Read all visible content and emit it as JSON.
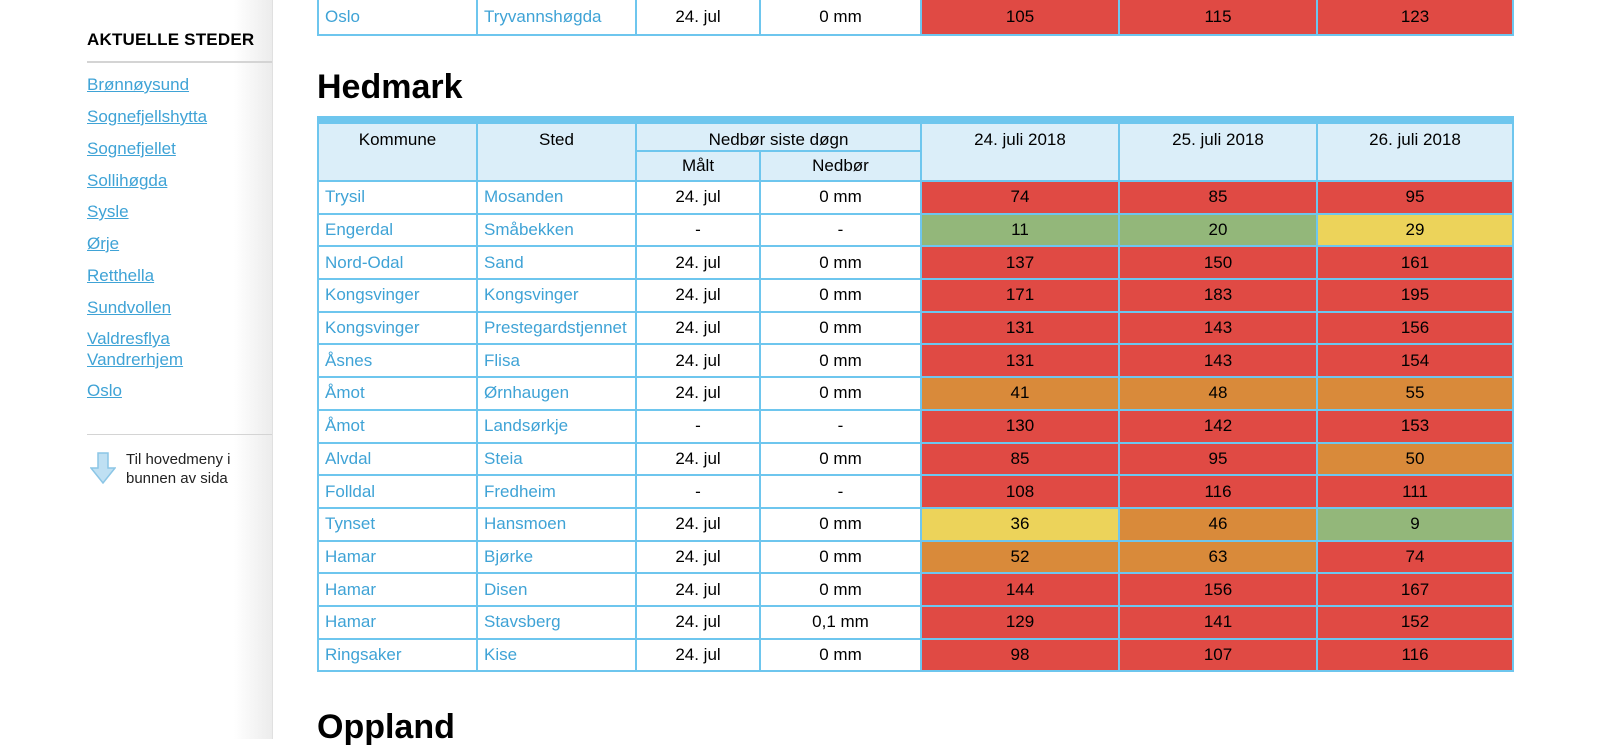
{
  "sidebar": {
    "title": "AKTUELLE STEDER",
    "links": [
      "Brønnøysund",
      "Sognefjellshytta",
      "Sognefjellet",
      "Sollihøgda",
      "Sysle",
      "Ørje",
      "Retthella",
      "Sundvollen",
      "Valdresflya Vandrerhjem",
      "Oslo"
    ],
    "back_link": {
      "icon": "down-arrow-icon",
      "label": "Til hovedmeny i bunnen av sida"
    }
  },
  "colors": {
    "red": "#e04a44",
    "orange": "#d98a3a",
    "yellow": "#ecd35a",
    "green": "#93b77a",
    "link": "#3fa3d6",
    "table_border": "#6ec6ee",
    "header_bg": "#dbeef9"
  },
  "oslo_row": {
    "kommune": "Oslo",
    "sted": "Tryvannshøgda",
    "malt": "24. jul",
    "nedbor": "0 mm",
    "values": [
      "105",
      "115",
      "123"
    ],
    "levels": [
      "red",
      "red",
      "red"
    ]
  },
  "hedmark": {
    "heading": "Hedmark",
    "headers": {
      "kommune": "Kommune",
      "sted": "Sted",
      "nedbor_group": "Nedbør siste døgn",
      "malt": "Målt",
      "nedbor": "Nedbør",
      "day1": "24. juli 2018",
      "day2": "25. juli 2018",
      "day3": "26. juli 2018"
    },
    "rows": [
      {
        "kommune": "Trysil",
        "sted": "Mosanden",
        "malt": "24. jul",
        "nedbor": "0 mm",
        "values": [
          "74",
          "85",
          "95"
        ],
        "levels": [
          "red",
          "red",
          "red"
        ]
      },
      {
        "kommune": "Engerdal",
        "sted": "Småbekken",
        "malt": "-",
        "nedbor": "-",
        "values": [
          "11",
          "20",
          "29"
        ],
        "levels": [
          "green",
          "green",
          "yellow"
        ]
      },
      {
        "kommune": "Nord-Odal",
        "sted": "Sand",
        "malt": "24. jul",
        "nedbor": "0 mm",
        "values": [
          "137",
          "150",
          "161"
        ],
        "levels": [
          "red",
          "red",
          "red"
        ]
      },
      {
        "kommune": "Kongsvinger",
        "sted": "Kongsvinger",
        "malt": "24. jul",
        "nedbor": "0 mm",
        "values": [
          "171",
          "183",
          "195"
        ],
        "levels": [
          "red",
          "red",
          "red"
        ]
      },
      {
        "kommune": "Kongsvinger",
        "sted": "Prestegardstjennet",
        "malt": "24. jul",
        "nedbor": "0 mm",
        "values": [
          "131",
          "143",
          "156"
        ],
        "levels": [
          "red",
          "red",
          "red"
        ]
      },
      {
        "kommune": "Åsnes",
        "sted": "Flisa",
        "malt": "24. jul",
        "nedbor": "0 mm",
        "values": [
          "131",
          "143",
          "154"
        ],
        "levels": [
          "red",
          "red",
          "red"
        ]
      },
      {
        "kommune": "Åmot",
        "sted": "Ørnhaugen",
        "malt": "24. jul",
        "nedbor": "0 mm",
        "values": [
          "41",
          "48",
          "55"
        ],
        "levels": [
          "orange",
          "orange",
          "orange"
        ]
      },
      {
        "kommune": "Åmot",
        "sted": "Landsørkje",
        "malt": "-",
        "nedbor": "-",
        "values": [
          "130",
          "142",
          "153"
        ],
        "levels": [
          "red",
          "red",
          "red"
        ]
      },
      {
        "kommune": "Alvdal",
        "sted": "Steia",
        "malt": "24. jul",
        "nedbor": "0 mm",
        "values": [
          "85",
          "95",
          "50"
        ],
        "levels": [
          "red",
          "red",
          "orange"
        ]
      },
      {
        "kommune": "Folldal",
        "sted": "Fredheim",
        "malt": "-",
        "nedbor": "-",
        "values": [
          "108",
          "116",
          "111"
        ],
        "levels": [
          "red",
          "red",
          "red"
        ]
      },
      {
        "kommune": "Tynset",
        "sted": "Hansmoen",
        "malt": "24. jul",
        "nedbor": "0 mm",
        "values": [
          "36",
          "46",
          "9"
        ],
        "levels": [
          "yellow",
          "orange",
          "green"
        ]
      },
      {
        "kommune": "Hamar",
        "sted": "Bjørke",
        "malt": "24. jul",
        "nedbor": "0 mm",
        "values": [
          "52",
          "63",
          "74"
        ],
        "levels": [
          "orange",
          "orange",
          "red"
        ]
      },
      {
        "kommune": "Hamar",
        "sted": "Disen",
        "malt": "24. jul",
        "nedbor": "0 mm",
        "values": [
          "144",
          "156",
          "167"
        ],
        "levels": [
          "red",
          "red",
          "red"
        ]
      },
      {
        "kommune": "Hamar",
        "sted": "Stavsberg",
        "malt": "24. jul",
        "nedbor": "0,1 mm",
        "values": [
          "129",
          "141",
          "152"
        ],
        "levels": [
          "red",
          "red",
          "red"
        ]
      },
      {
        "kommune": "Ringsaker",
        "sted": "Kise",
        "malt": "24. jul",
        "nedbor": "0 mm",
        "values": [
          "98",
          "107",
          "116"
        ],
        "levels": [
          "red",
          "red",
          "red"
        ]
      }
    ]
  },
  "oppland": {
    "heading": "Oppland"
  }
}
